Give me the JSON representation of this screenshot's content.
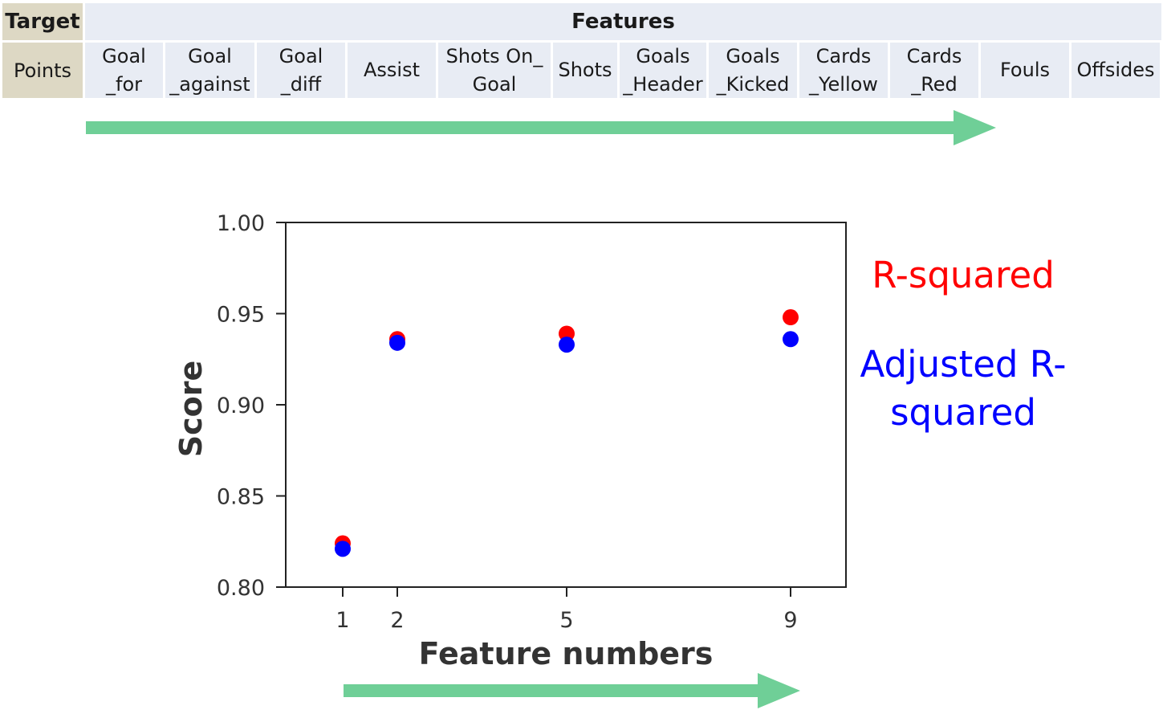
{
  "table": {
    "target_header": "Target",
    "features_header": "Features",
    "target_value": "Points",
    "features": [
      "Goal\n_for",
      "Goal\n_against",
      "Goal\n_diff",
      "Assist",
      "Shots On_\nGoal",
      "Shots",
      "Goals\n_Header",
      "Goals\n_Kicked",
      "Cards\n_Yellow",
      "Cards\n_Red",
      "Fouls",
      "Offsides"
    ]
  },
  "colors": {
    "target_bg": "#ddd8c4",
    "feature_bg": "#e8ecf4",
    "arrow": "#6fcf97",
    "r_squared": "#ff0000",
    "adjusted_r_squared": "#0000ff"
  },
  "legend": {
    "r_squared_label": "R-squared",
    "adjusted_label_line1": "Adjusted R-",
    "adjusted_label_line2": "squared"
  },
  "chart_data": {
    "type": "scatter",
    "title": "",
    "xlabel": "Feature numbers",
    "ylabel": "Score",
    "x": [
      1,
      2,
      5,
      9
    ],
    "xticks": [
      "1",
      "2",
      "5",
      "9"
    ],
    "yticks": [
      "0.80",
      "0.85",
      "0.90",
      "0.95",
      "1.00"
    ],
    "ylim": [
      0.8,
      1.0
    ],
    "xlim": [
      0,
      10
    ],
    "grid": false,
    "legend_placement": "right",
    "series": [
      {
        "name": "R-squared",
        "color": "#ff0000",
        "values": [
          0.824,
          0.936,
          0.939,
          0.948
        ]
      },
      {
        "name": "Adjusted R-squared",
        "color": "#0000ff",
        "values": [
          0.821,
          0.934,
          0.933,
          0.936
        ]
      }
    ]
  }
}
